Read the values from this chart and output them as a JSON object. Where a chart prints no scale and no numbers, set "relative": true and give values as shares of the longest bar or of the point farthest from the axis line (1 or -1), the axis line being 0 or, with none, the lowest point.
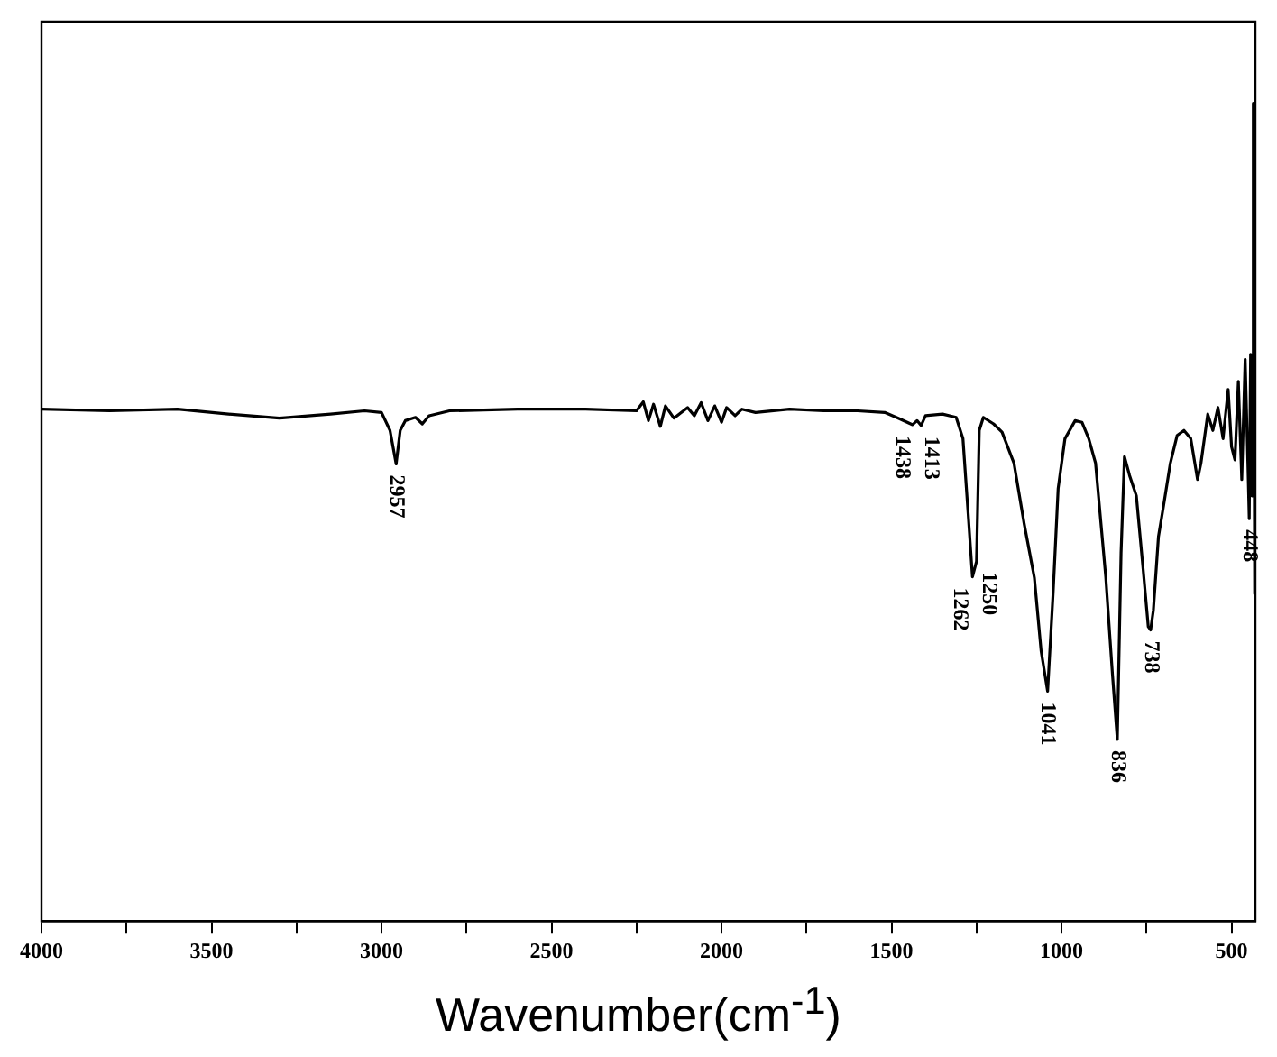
{
  "chart_data": {
    "type": "line",
    "relative": true,
    "xlabel": "Wavenumber(cm$^{-1}$)",
    "xlim": [
      4000,
      430
    ],
    "xticks": [
      4000,
      {
        "value": 3750,
        "label": null
      },
      3500,
      {
        "value": 3250,
        "label": null
      },
      3000,
      {
        "value": 2750,
        "label": null
      },
      2500,
      {
        "value": 2250,
        "label": null
      },
      2000,
      {
        "value": 1750,
        "label": null
      },
      1500,
      {
        "value": 1250,
        "label": null
      },
      1000,
      {
        "value": 750,
        "label": null
      },
      500
    ],
    "grid": false,
    "legend": false,
    "marker": "none",
    "line_style": "solid",
    "x": [
      4000,
      3800,
      3600,
      3450,
      3300,
      3150,
      3050,
      3000,
      2975,
      2957,
      2945,
      2930,
      2900,
      2880,
      2860,
      2800,
      2600,
      2400,
      2250,
      2230,
      2215,
      2200,
      2180,
      2165,
      2140,
      2100,
      2080,
      2060,
      2040,
      2020,
      2000,
      1985,
      1960,
      1940,
      1900,
      1800,
      1700,
      1600,
      1520,
      1480,
      1438,
      1425,
      1413,
      1400,
      1350,
      1310,
      1290,
      1275,
      1262,
      1250,
      1242,
      1230,
      1200,
      1175,
      1140,
      1110,
      1080,
      1060,
      1041,
      1025,
      1010,
      990,
      960,
      940,
      920,
      900,
      870,
      850,
      836,
      825,
      815,
      800,
      780,
      760,
      745,
      738,
      730,
      715,
      700,
      680,
      660,
      640,
      620,
      600,
      590,
      570,
      555,
      540,
      525,
      510,
      500,
      490,
      480,
      470,
      460,
      452,
      448,
      444,
      440,
      436,
      432,
      430
    ],
    "series": [
      {
        "color": "#000000",
        "values": [
          0.626,
          0.624,
          0.626,
          0.62,
          0.615,
          0.62,
          0.624,
          0.622,
          0.6,
          0.559,
          0.6,
          0.612,
          0.616,
          0.608,
          0.618,
          0.624,
          0.626,
          0.626,
          0.624,
          0.635,
          0.612,
          0.632,
          0.605,
          0.63,
          0.615,
          0.628,
          0.618,
          0.634,
          0.612,
          0.63,
          0.61,
          0.628,
          0.618,
          0.626,
          0.622,
          0.626,
          0.624,
          0.624,
          0.622,
          0.615,
          0.607,
          0.612,
          0.606,
          0.618,
          0.62,
          0.616,
          0.59,
          0.5,
          0.421,
          0.44,
          0.6,
          0.616,
          0.608,
          0.598,
          0.56,
          0.486,
          0.42,
          0.33,
          0.281,
          0.4,
          0.529,
          0.59,
          0.612,
          0.61,
          0.59,
          0.56,
          0.421,
          0.3,
          0.222,
          0.45,
          0.568,
          0.545,
          0.52,
          0.43,
          0.36,
          0.356,
          0.38,
          0.47,
          0.508,
          0.56,
          0.594,
          0.6,
          0.59,
          0.54,
          0.56,
          0.62,
          0.6,
          0.628,
          0.59,
          0.65,
          0.58,
          0.564,
          0.66,
          0.54,
          0.687,
          0.56,
          0.492,
          0.693,
          0.52,
          1.0,
          0.4,
          0.45
        ]
      }
    ],
    "annotations": [
      {
        "text": "2957",
        "x": 2957,
        "y": 0.559
      },
      {
        "text": "1438",
        "x": 1438,
        "y": 0.607
      },
      {
        "text": "1413",
        "x": 1413,
        "y": 0.606
      },
      {
        "text": "1262",
        "x": 1262,
        "y": 0.421
      },
      {
        "text": "1250",
        "x": 1250,
        "y": 0.44
      },
      {
        "text": "1041",
        "x": 1041,
        "y": 0.281
      },
      {
        "text": "836",
        "x": 836,
        "y": 0.222
      },
      {
        "text": "738",
        "x": 738,
        "y": 0.356
      },
      {
        "text": "448",
        "x": 448,
        "y": 0.492
      }
    ]
  }
}
